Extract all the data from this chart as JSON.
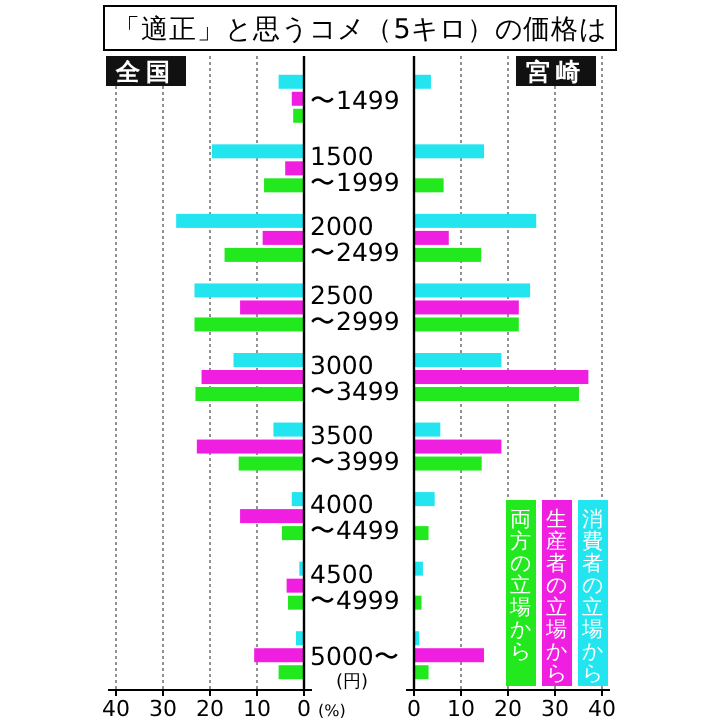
{
  "chart_data": [
    {
      "type": "bar",
      "orientation": "horizontal",
      "title": "「適正」と思うコメ（5キロ）の価格は",
      "subtitle": "全国",
      "xlabel": "(%)",
      "ylabel": "(円)",
      "categories": [
        "〜1499",
        "1500\n〜1999",
        "2000\n〜2499",
        "2500\n〜2999",
        "3000\n〜3499",
        "3500\n〜3999",
        "4000\n〜4499",
        "4500\n〜4999",
        "5000〜"
      ],
      "xlim": [
        40,
        0
      ],
      "xticks": [
        40,
        30,
        20,
        10,
        0
      ],
      "grid": "x",
      "legend": false,
      "series": [
        {
          "color": "#22e5f0",
          "values": [
            5.4,
            19.6,
            27.2,
            23.3,
            15,
            6.5,
            2.6,
            1,
            1.7
          ]
        },
        {
          "color": "#f01ee0",
          "values": [
            2.6,
            4,
            8.8,
            13.6,
            21.8,
            22.8,
            13.6,
            3.7,
            10.6
          ]
        },
        {
          "color": "#22e81e",
          "values": [
            2.3,
            8.5,
            16.9,
            23.3,
            23.1,
            13.9,
            4.7,
            3.4,
            5.4
          ]
        }
      ]
    },
    {
      "type": "bar",
      "orientation": "horizontal",
      "subtitle": "宮崎",
      "xlim": [
        0,
        40
      ],
      "xticks": [
        0,
        10,
        20,
        30,
        40
      ],
      "grid": "x",
      "legend": "bottom right",
      "series": [
        {
          "name": "消費者の立場から",
          "color": "#22e5f0",
          "values": [
            3.6,
            14.9,
            26,
            24.7,
            18.6,
            5.6,
            4.4,
            1.9,
            1.1
          ]
        },
        {
          "name": "生産者の立場から",
          "color": "#f01ee0",
          "values": [
            0,
            0,
            7.4,
            22.3,
            37.1,
            18.6,
            0,
            0,
            14.9
          ]
        },
        {
          "name": "両方の立場から",
          "color": "#22e81e",
          "values": [
            0,
            6.3,
            14.3,
            22.3,
            35.1,
            14.4,
            3.1,
            1.6,
            3.1
          ]
        }
      ]
    }
  ]
}
